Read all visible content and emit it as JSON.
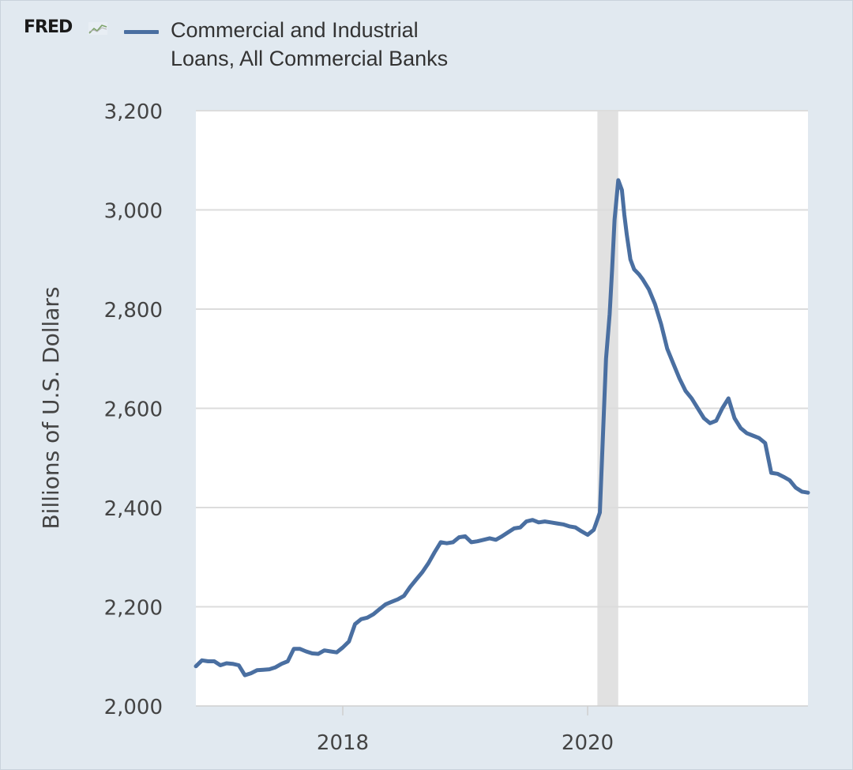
{
  "logo_text": "FRED",
  "legend": {
    "label_line1": "Commercial and Industrial",
    "label_line2": "Loans, All Commercial Banks"
  },
  "colors": {
    "series": "#4a6fa1",
    "recession": "#e1e1e1",
    "grid": "#dcdcdc",
    "plot_bg": "#ffffff",
    "page_bg": "#e1e9f0"
  },
  "chart_data": {
    "type": "line",
    "title": "",
    "xlabel": "",
    "ylabel": "Billions of U.S. Dollars",
    "ylim": [
      2000,
      3200
    ],
    "xlim": [
      2016.8,
      2021.8
    ],
    "yticks": [
      2000,
      2200,
      2400,
      2600,
      2800,
      3000,
      3200
    ],
    "ytick_labels": [
      "2,000",
      "2,200",
      "2,400",
      "2,600",
      "2,800",
      "3,000",
      "3,200"
    ],
    "xticks": [
      2018,
      2020
    ],
    "xtick_labels": [
      "2018",
      "2020"
    ],
    "recession_band": [
      2020.08,
      2020.25
    ],
    "grid": "horizontal",
    "series": [
      {
        "name": "Commercial and Industrial Loans, All Commercial Banks",
        "x": [
          2016.8,
          2016.85,
          2016.9,
          2016.95,
          2017.0,
          2017.05,
          2017.1,
          2017.15,
          2017.2,
          2017.25,
          2017.3,
          2017.35,
          2017.4,
          2017.45,
          2017.5,
          2017.55,
          2017.6,
          2017.65,
          2017.7,
          2017.75,
          2017.8,
          2017.85,
          2017.9,
          2017.95,
          2018.0,
          2018.05,
          2018.1,
          2018.15,
          2018.2,
          2018.25,
          2018.3,
          2018.35,
          2018.4,
          2018.45,
          2018.5,
          2018.55,
          2018.6,
          2018.65,
          2018.7,
          2018.75,
          2018.8,
          2018.85,
          2018.9,
          2018.95,
          2019.0,
          2019.05,
          2019.1,
          2019.15,
          2019.2,
          2019.25,
          2019.3,
          2019.35,
          2019.4,
          2019.45,
          2019.5,
          2019.55,
          2019.6,
          2019.65,
          2019.7,
          2019.75,
          2019.8,
          2019.85,
          2019.9,
          2019.95,
          2020.0,
          2020.05,
          2020.1,
          2020.15,
          2020.18,
          2020.2,
          2020.22,
          2020.25,
          2020.28,
          2020.3,
          2020.32,
          2020.35,
          2020.38,
          2020.42,
          2020.45,
          2020.5,
          2020.55,
          2020.6,
          2020.65,
          2020.7,
          2020.75,
          2020.8,
          2020.85,
          2020.9,
          2020.95,
          2021.0,
          2021.05,
          2021.1,
          2021.15,
          2021.2,
          2021.25,
          2021.3,
          2021.35,
          2021.4,
          2021.45,
          2021.5,
          2021.55,
          2021.6,
          2021.65,
          2021.7,
          2021.75,
          2021.8
        ],
        "values": [
          2080,
          2092,
          2090,
          2090,
          2082,
          2086,
          2085,
          2082,
          2062,
          2066,
          2072,
          2073,
          2074,
          2078,
          2085,
          2090,
          2115,
          2115,
          2110,
          2106,
          2105,
          2112,
          2110,
          2108,
          2118,
          2130,
          2165,
          2175,
          2178,
          2185,
          2195,
          2205,
          2210,
          2215,
          2222,
          2240,
          2255,
          2270,
          2288,
          2310,
          2330,
          2328,
          2330,
          2340,
          2342,
          2330,
          2332,
          2335,
          2338,
          2335,
          2342,
          2350,
          2358,
          2360,
          2372,
          2375,
          2370,
          2372,
          2370,
          2368,
          2366,
          2362,
          2360,
          2352,
          2345,
          2355,
          2390,
          2700,
          2790,
          2880,
          2980,
          3060,
          3040,
          2990,
          2950,
          2900,
          2880,
          2870,
          2860,
          2840,
          2810,
          2770,
          2720,
          2690,
          2660,
          2635,
          2620,
          2600,
          2580,
          2570,
          2575,
          2600,
          2620,
          2580,
          2560,
          2550,
          2545,
          2540,
          2530,
          2470,
          2468,
          2462,
          2455,
          2440,
          2432,
          2430
        ]
      }
    ]
  }
}
